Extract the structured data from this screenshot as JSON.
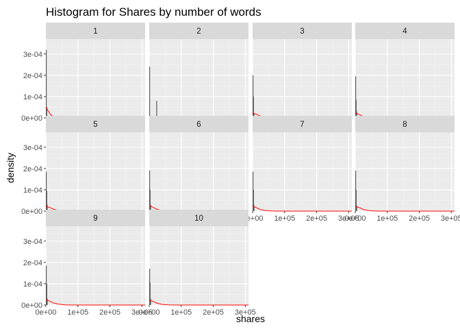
{
  "chart_data": {
    "type": "histogram",
    "title": "Histogram for Shares by number of words",
    "xlabel": "shares",
    "ylabel": "density",
    "xlim": [
      0,
      310000
    ],
    "ylim": [
      0,
      0.00037
    ],
    "x_ticks": [
      0,
      100000,
      200000,
      300000
    ],
    "x_tick_labels": [
      "0e+00",
      "1e+05",
      "2e+05",
      "3e+05"
    ],
    "y_ticks": [
      0,
      0.0001,
      0.0002,
      0.0003
    ],
    "y_tick_labels": [
      "0e+00",
      "1e-04",
      "2e-04",
      "3e-04"
    ],
    "facet_layout": "wrap, 4 columns x 3 rows",
    "grid": true,
    "histogram_color": "#595959",
    "density_color": "#ff0000",
    "panel_background": "#ebebeb",
    "strip_background": "#d9d9d9",
    "facets": [
      {
        "label": "1",
        "bars": [
          {
            "x": 0,
            "y": 0.00032
          },
          {
            "x": 1500,
            "y": 5e-05
          }
        ],
        "density": [
          [
            0,
            5e-05
          ],
          [
            3000,
            4.5e-05
          ],
          [
            8000,
            3e-05
          ],
          [
            15000,
            1.5e-05
          ],
          [
            25000,
            4e-06
          ],
          [
            40000,
            1e-06
          ],
          [
            60000,
            0
          ],
          [
            310000,
            0
          ]
        ]
      },
      {
        "label": "2",
        "bars": [
          {
            "x": 0,
            "y": 0.00024
          },
          {
            "x": 22000,
            "y": 8e-05
          }
        ],
        "density": [
          [
            0,
            5e-06
          ],
          [
            50000,
            4e-06
          ],
          [
            100000,
            3e-06
          ],
          [
            150000,
            2e-06
          ],
          [
            200000,
            1e-06
          ],
          [
            215000,
            0
          ],
          [
            310000,
            0
          ]
        ]
      },
      {
        "label": "3",
        "bars": [
          {
            "x": 0,
            "y": 0.0002
          },
          {
            "x": 1500,
            "y": 0.0001
          },
          {
            "x": 3000,
            "y": 2e-05
          }
        ],
        "density": [
          [
            0,
            2.5e-05
          ],
          [
            6000,
            2e-05
          ],
          [
            15000,
            1.5e-05
          ],
          [
            25000,
            8e-06
          ],
          [
            40000,
            3e-06
          ],
          [
            60000,
            1e-06
          ],
          [
            80000,
            0
          ],
          [
            310000,
            0
          ]
        ]
      },
      {
        "label": "4",
        "bars": [
          {
            "x": 0,
            "y": 0.000195
          },
          {
            "x": 1500,
            "y": 8.5e-05
          },
          {
            "x": 3000,
            "y": 3e-05
          }
        ],
        "density": [
          [
            0,
            2.2e-05
          ],
          [
            6000,
            2e-05
          ],
          [
            15000,
            1.4e-05
          ],
          [
            25000,
            7e-06
          ],
          [
            40000,
            3e-06
          ],
          [
            60000,
            1e-06
          ],
          [
            80000,
            0
          ],
          [
            310000,
            0
          ]
        ]
      },
      {
        "label": "5",
        "bars": [
          {
            "x": 0,
            "y": 0.000185
          },
          {
            "x": 1500,
            "y": 9.5e-05
          },
          {
            "x": 3000,
            "y": 3e-05
          }
        ],
        "density": [
          [
            0,
            2.2e-05
          ],
          [
            6000,
            2e-05
          ],
          [
            15000,
            1.5e-05
          ],
          [
            25000,
            8e-06
          ],
          [
            40000,
            3e-06
          ],
          [
            60000,
            1e-06
          ],
          [
            80000,
            0
          ],
          [
            310000,
            0
          ]
        ]
      },
      {
        "label": "6",
        "bars": [
          {
            "x": 0,
            "y": 0.00019
          },
          {
            "x": 1500,
            "y": 0.0001
          },
          {
            "x": 3000,
            "y": 3e-05
          }
        ],
        "density": [
          [
            0,
            2.5e-05
          ],
          [
            6000,
            2.2e-05
          ],
          [
            15000,
            1.5e-05
          ],
          [
            25000,
            8e-06
          ],
          [
            40000,
            3e-06
          ],
          [
            60000,
            1e-06
          ],
          [
            80000,
            0
          ],
          [
            310000,
            0
          ]
        ]
      },
      {
        "label": "7",
        "bars": [
          {
            "x": 0,
            "y": 0.000185
          },
          {
            "x": 1500,
            "y": 0.0001
          },
          {
            "x": 3000,
            "y": 3e-05
          }
        ],
        "density": [
          [
            0,
            2.2e-05
          ],
          [
            6000,
            2e-05
          ],
          [
            15000,
            1.4e-05
          ],
          [
            25000,
            7e-06
          ],
          [
            40000,
            3e-06
          ],
          [
            60000,
            1e-06
          ],
          [
            80000,
            0
          ],
          [
            310000,
            0
          ]
        ]
      },
      {
        "label": "8",
        "bars": [
          {
            "x": 0,
            "y": 0.00019
          },
          {
            "x": 1500,
            "y": 0.0001
          },
          {
            "x": 3000,
            "y": 2.5e-05
          }
        ],
        "density": [
          [
            0,
            2.3e-05
          ],
          [
            6000,
            2e-05
          ],
          [
            15000,
            1.5e-05
          ],
          [
            25000,
            8e-06
          ],
          [
            40000,
            3e-06
          ],
          [
            60000,
            1e-06
          ],
          [
            80000,
            0
          ],
          [
            310000,
            0
          ]
        ]
      },
      {
        "label": "9",
        "bars": [
          {
            "x": 0,
            "y": 0.000185
          },
          {
            "x": 1500,
            "y": 0.0001
          },
          {
            "x": 3000,
            "y": 3e-05
          }
        ],
        "density": [
          [
            0,
            2.5e-05
          ],
          [
            6000,
            2.2e-05
          ],
          [
            15000,
            1.6e-05
          ],
          [
            25000,
            9e-06
          ],
          [
            40000,
            4e-06
          ],
          [
            60000,
            1e-06
          ],
          [
            80000,
            0
          ],
          [
            310000,
            0
          ]
        ]
      },
      {
        "label": "10",
        "bars": [
          {
            "x": 0,
            "y": 0.00017
          },
          {
            "x": 1500,
            "y": 0.000105
          },
          {
            "x": 3000,
            "y": 3e-05
          }
        ],
        "density": [
          [
            0,
            2.2e-05
          ],
          [
            6000,
            2e-05
          ],
          [
            15000,
            1.5e-05
          ],
          [
            25000,
            8e-06
          ],
          [
            40000,
            3e-06
          ],
          [
            60000,
            1e-06
          ],
          [
            80000,
            0
          ],
          [
            310000,
            0
          ]
        ]
      }
    ]
  }
}
